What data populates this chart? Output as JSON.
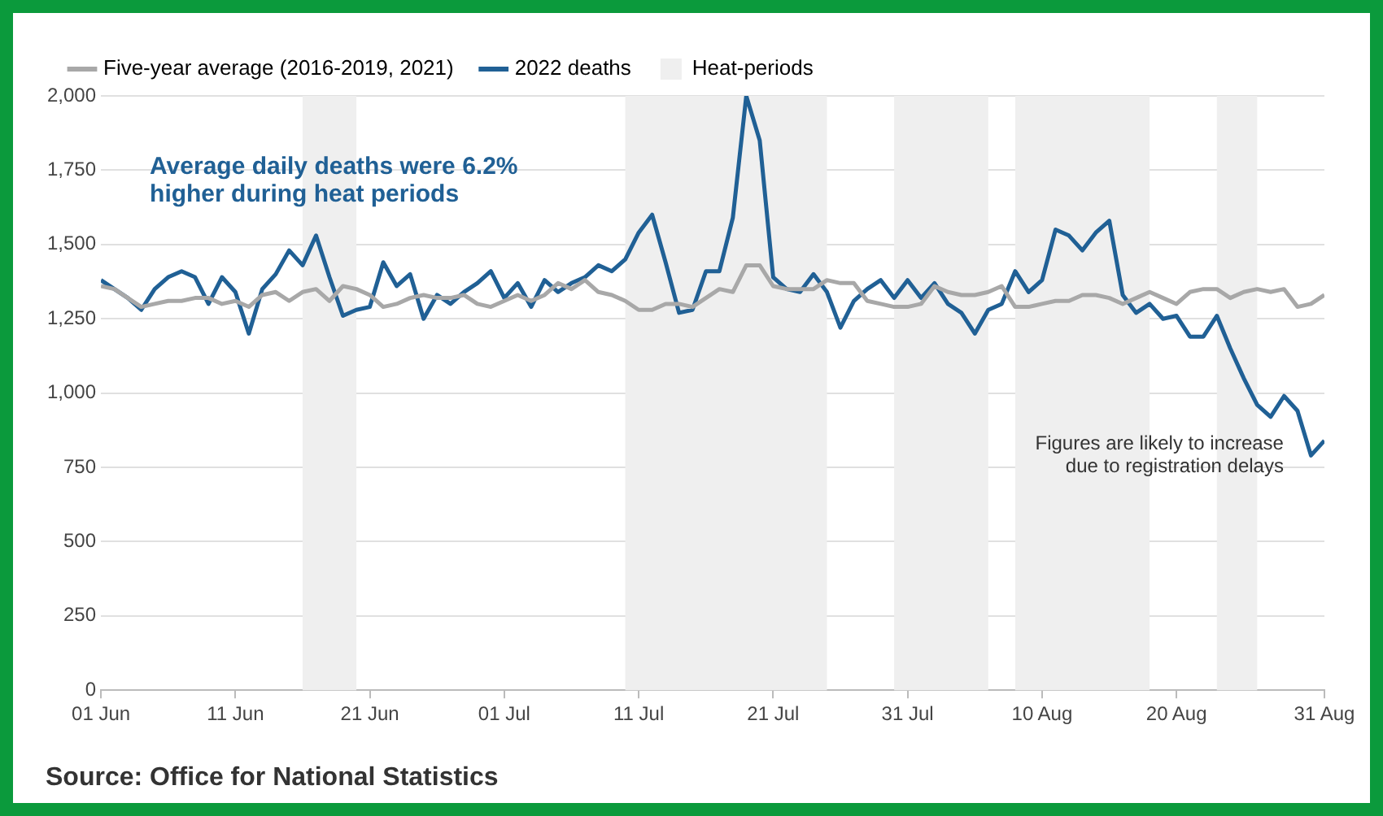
{
  "chart_data": {
    "type": "line",
    "x": [
      "--06-01",
      "--06-02",
      "--06-03",
      "--06-04",
      "--06-05",
      "--06-06",
      "--06-07",
      "--06-08",
      "--06-09",
      "--06-10",
      "--06-11",
      "--06-12",
      "--06-13",
      "--06-14",
      "--06-15",
      "--06-16",
      "--06-17",
      "--06-18",
      "--06-19",
      "--06-20",
      "--06-21",
      "--06-22",
      "--06-23",
      "--06-24",
      "--06-25",
      "--06-26",
      "--06-27",
      "--06-28",
      "--06-29",
      "--06-30",
      "--07-01",
      "--07-02",
      "--07-03",
      "--07-04",
      "--07-05",
      "--07-06",
      "--07-07",
      "--07-08",
      "--07-09",
      "--07-10",
      "--07-11",
      "--07-12",
      "--07-13",
      "--07-14",
      "--07-15",
      "--07-16",
      "--07-17",
      "--07-18",
      "--07-19",
      "--07-20",
      "--07-21",
      "--07-22",
      "--07-23",
      "--07-24",
      "--07-25",
      "--07-26",
      "--07-27",
      "--07-28",
      "--07-29",
      "--07-30",
      "--07-31",
      "--08-01",
      "--08-02",
      "--08-03",
      "--08-04",
      "--08-05",
      "--08-06",
      "--08-07",
      "--08-08",
      "--08-09",
      "--08-10",
      "--08-11",
      "--08-12",
      "--08-13",
      "--08-14",
      "--08-15",
      "--08-16",
      "--08-17",
      "--08-18",
      "--08-19",
      "--08-20",
      "--08-21",
      "--08-22",
      "--08-23",
      "--08-24",
      "--08-25",
      "--08-26",
      "--08-27",
      "--08-28",
      "--08-29",
      "--08-30",
      "--08-31"
    ],
    "series": [
      {
        "name": "Five-year average (2016-2019, 2021)",
        "color": "#a8a8a8",
        "values": [
          1360,
          1350,
          1320,
          1290,
          1300,
          1310,
          1310,
          1320,
          1320,
          1300,
          1310,
          1290,
          1330,
          1340,
          1310,
          1340,
          1350,
          1310,
          1360,
          1350,
          1330,
          1290,
          1300,
          1320,
          1330,
          1320,
          1320,
          1330,
          1300,
          1290,
          1310,
          1330,
          1310,
          1330,
          1370,
          1350,
          1380,
          1340,
          1330,
          1310,
          1280,
          1280,
          1300,
          1300,
          1290,
          1320,
          1350,
          1340,
          1430,
          1430,
          1360,
          1350,
          1350,
          1350,
          1380,
          1370,
          1370,
          1310,
          1300,
          1290,
          1290,
          1300,
          1360,
          1340,
          1330,
          1330,
          1340,
          1360,
          1290,
          1290,
          1300,
          1310,
          1310,
          1330,
          1330,
          1320,
          1300,
          1320,
          1340,
          1320,
          1300,
          1340,
          1350,
          1350,
          1320,
          1340,
          1350,
          1340,
          1350,
          1290,
          1300,
          1330
        ]
      },
      {
        "name": "2022 deaths",
        "color": "#206095",
        "values": [
          1380,
          1350,
          1320,
          1280,
          1350,
          1390,
          1410,
          1390,
          1300,
          1390,
          1340,
          1200,
          1350,
          1400,
          1480,
          1430,
          1530,
          1390,
          1260,
          1280,
          1290,
          1440,
          1360,
          1400,
          1250,
          1330,
          1300,
          1340,
          1370,
          1410,
          1320,
          1370,
          1290,
          1380,
          1340,
          1370,
          1390,
          1430,
          1410,
          1450,
          1540,
          1600,
          1440,
          1270,
          1280,
          1410,
          1410,
          1590,
          2000,
          1850,
          1390,
          1350,
          1340,
          1400,
          1340,
          1220,
          1310,
          1350,
          1380,
          1320,
          1380,
          1320,
          1370,
          1300,
          1270,
          1200,
          1280,
          1300,
          1410,
          1340,
          1380,
          1550,
          1530,
          1480,
          1540,
          1580,
          1330,
          1270,
          1300,
          1250,
          1260,
          1190,
          1190,
          1260,
          1150,
          1050,
          960,
          920,
          990,
          940,
          790,
          840
        ]
      }
    ],
    "bands": [
      {
        "axis": "x",
        "from": "--06-16",
        "to": "--06-20",
        "label": "Heat-periods",
        "color": "#efefef"
      },
      {
        "axis": "x",
        "from": "--07-10",
        "to": "--07-25",
        "color": "#efefef"
      },
      {
        "axis": "x",
        "from": "--07-30",
        "to": "--08-06",
        "color": "#efefef"
      },
      {
        "axis": "x",
        "from": "--08-08",
        "to": "--08-18",
        "color": "#efefef"
      },
      {
        "axis": "x",
        "from": "--08-23",
        "to": "--08-26",
        "color": "#efefef"
      }
    ],
    "xlim": [
      "--06-01",
      "--08-31"
    ],
    "xticks": [
      {
        "value": "--06-01",
        "label": "01 Jun"
      },
      {
        "value": "--06-11",
        "label": "11 Jun"
      },
      {
        "value": "--06-21",
        "label": "21 Jun"
      },
      {
        "value": "--07-01",
        "label": "01 Jul"
      },
      {
        "value": "--07-11",
        "label": "11 Jul"
      },
      {
        "value": "--07-21",
        "label": "21 Jul"
      },
      {
        "value": "--07-31",
        "label": "31 Jul"
      },
      {
        "value": "--08-10",
        "label": "10 Aug"
      },
      {
        "value": "--08-20",
        "label": "20 Aug"
      },
      {
        "value": "--08-31",
        "label": "31 Aug"
      }
    ],
    "ylim": [
      0,
      2000
    ],
    "yticks": [
      0,
      250,
      500,
      750,
      {
        "value": 1000,
        "label": "1,000"
      },
      {
        "value": 1250,
        "label": "1,250"
      },
      {
        "value": 1500,
        "label": "1,500"
      },
      {
        "value": 1750,
        "label": "1,750"
      },
      {
        "value": 2000,
        "label": "2,000"
      }
    ],
    "grid": "y",
    "legend": "top left",
    "marker": "none",
    "line_style": "solid",
    "annotations": [
      "Average daily deaths were 6.2% higher during heat periods",
      "Figures are likely to increase due to registration delays",
      "Source: Office for National Statistics"
    ]
  }
}
